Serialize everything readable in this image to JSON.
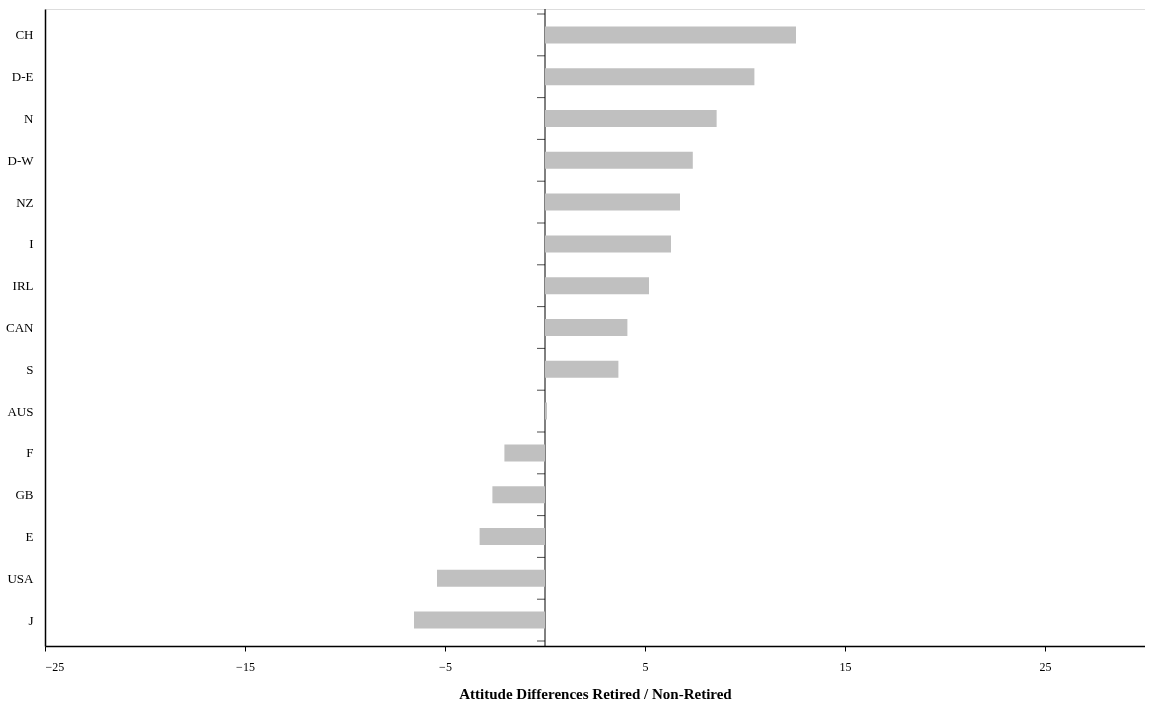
{
  "chart_data": {
    "type": "bar",
    "orientation": "horizontal",
    "xlabel": "Attitude Differences Retired / Non-Retired",
    "categories": [
      "CH",
      "D-E",
      "N",
      "D-W",
      "NZ",
      "I",
      "IRL",
      "CAN",
      "S",
      "AUS",
      "F",
      "GB",
      "E",
      "USA",
      "J"
    ],
    "values": [
      12.55,
      10.47,
      8.58,
      7.39,
      6.75,
      6.3,
      5.2,
      4.12,
      3.67,
      0.1,
      -2.03,
      -2.63,
      -3.27,
      -5.4,
      -6.55
    ],
    "color": "#c0c0c0",
    "xlim": [
      -25,
      30
    ],
    "xticks": [
      -25,
      -15,
      -5,
      5,
      15,
      25
    ],
    "ref_lines": [
      {
        "axis": "x",
        "value": 0,
        "color": "#000000"
      }
    ],
    "grid": false
  }
}
